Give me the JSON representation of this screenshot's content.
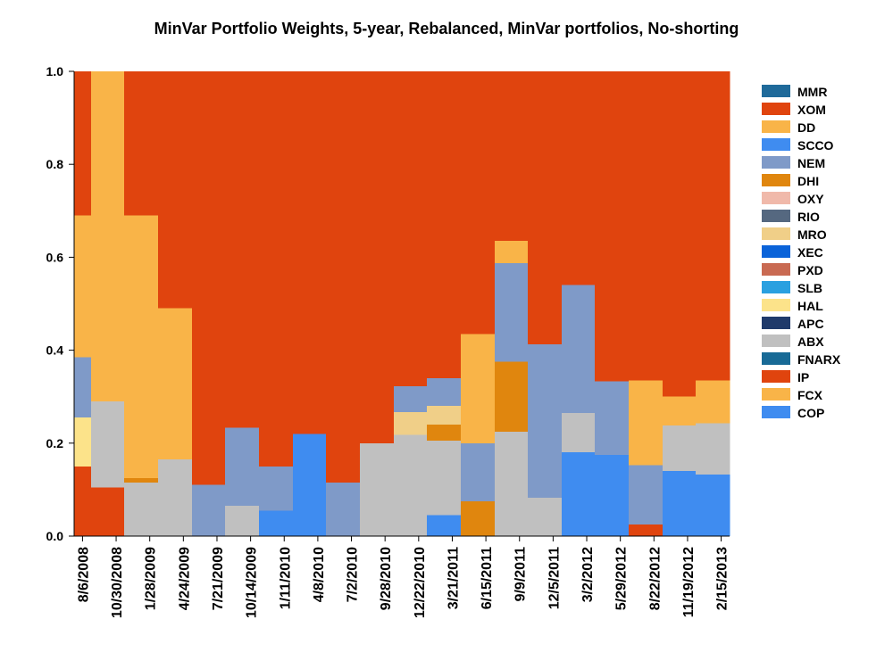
{
  "chart_data": {
    "type": "area",
    "stacked": true,
    "step": true,
    "title": "MinVar Portfolio Weights, 5-year, Rebalanced, MinVar portfolios, No-shorting",
    "xlabel": "",
    "ylabel": "",
    "ylim": [
      0,
      1
    ],
    "y_ticks": [
      "0.0",
      "0.2",
      "0.4",
      "0.6",
      "0.8",
      "1.0"
    ],
    "x_tick_labels": [
      "8/6/2008",
      "10/30/2008",
      "1/28/2009",
      "4/24/2009",
      "7/21/2009",
      "10/14/2009",
      "1/11/2010",
      "4/8/2010",
      "7/2/2010",
      "9/28/2010",
      "12/22/2010",
      "3/21/2011",
      "6/15/2011",
      "9/9/2011",
      "12/5/2011",
      "3/2/2012",
      "5/29/2012",
      "8/22/2012",
      "11/19/2012",
      "2/15/2013"
    ],
    "legend": {
      "position": "right",
      "order": [
        "MMR",
        "XOM",
        "DD",
        "SCCO",
        "NEM",
        "DHI",
        "OXY",
        "RIO",
        "MRO",
        "XEC",
        "PXD",
        "SLB",
        "HAL",
        "APC",
        "ABX",
        "FNARX",
        "IP",
        "FCX",
        "COP"
      ]
    },
    "colors": {
      "MMR": "#1f6a9a",
      "XOM": "#e0440e",
      "DD": "#f9b448",
      "SCCO": "#3f8cf0",
      "NEM": "#7f9ac8",
      "DHI": "#e0860e",
      "OXY": "#f0b9aa",
      "RIO": "#556880",
      "MRO": "#f0cf88",
      "XEC": "#0a63d9",
      "PXD": "#c96a52",
      "SLB": "#2aa0e0",
      "HAL": "#fce38a",
      "APC": "#1f3a6a",
      "ABX": "#c0c0c0",
      "FNARX": "#186a96",
      "IP": "#e0440e",
      "FCX": "#f9b448",
      "COP": "#3f8cf0"
    },
    "stack_order_bottom_to_top": [
      "COP",
      "FCX",
      "IP",
      "ABX",
      "HAL",
      "DHI",
      "MRO",
      "NEM",
      "DD",
      "XOM"
    ],
    "columns": [
      {
        "date": "8/6/2008",
        "weights": {
          "IP": 0.15,
          "HAL": 0.105,
          "NEM": 0.13,
          "DD": 0.305,
          "XOM": 0.31
        }
      },
      {
        "date": "9/18/2008",
        "weights": {
          "IP": 0.105,
          "ABX": 0.185,
          "DD": 0.71
        }
      },
      {
        "date": "10/30/2008",
        "weights": {
          "IP": 0.105,
          "ABX": 0.185,
          "DD": 0.71
        }
      },
      {
        "date": "12/14/2008",
        "weights": {
          "ABX": 0.115,
          "DHI": 0.01,
          "DD": 0.565,
          "XOM": 0.31
        }
      },
      {
        "date": "1/28/2009",
        "weights": {
          "ABX": 0.115,
          "DHI": 0.01,
          "DD": 0.565,
          "XOM": 0.31
        }
      },
      {
        "date": "3/12/2009",
        "weights": {
          "ABX": 0.165,
          "DD": 0.325,
          "XOM": 0.51
        }
      },
      {
        "date": "4/24/2009",
        "weights": {
          "ABX": 0.165,
          "DD": 0.325,
          "XOM": 0.51
        }
      },
      {
        "date": "6/7/2009",
        "weights": {
          "NEM": 0.11,
          "XOM": 0.89
        }
      },
      {
        "date": "7/21/2009",
        "weights": {
          "NEM": 0.11,
          "XOM": 0.89
        }
      },
      {
        "date": "9/2/2009",
        "weights": {
          "ABX": 0.065,
          "NEM": 0.168,
          "XOM": 0.767
        }
      },
      {
        "date": "10/14/2009",
        "weights": {
          "ABX": 0.065,
          "NEM": 0.168,
          "XOM": 0.767
        }
      },
      {
        "date": "11/27/2009",
        "weights": {
          "COP": 0.055,
          "NEM": 0.095,
          "XOM": 0.85
        }
      },
      {
        "date": "1/11/2010",
        "weights": {
          "COP": 0.055,
          "NEM": 0.095,
          "XOM": 0.85
        }
      },
      {
        "date": "2/24/2010",
        "weights": {
          "COP": 0.22,
          "XOM": 0.78
        }
      },
      {
        "date": "4/8/2010",
        "weights": {
          "COP": 0.22,
          "XOM": 0.78
        }
      },
      {
        "date": "5/20/2010",
        "weights": {
          "NEM": 0.115,
          "XOM": 0.885
        }
      },
      {
        "date": "7/2/2010",
        "weights": {
          "NEM": 0.115,
          "XOM": 0.885
        }
      },
      {
        "date": "8/16/2010",
        "weights": {
          "ABX": 0.2,
          "XOM": 0.8
        }
      },
      {
        "date": "9/28/2010",
        "weights": {
          "ABX": 0.2,
          "XOM": 0.8
        }
      },
      {
        "date": "11/9/2010",
        "weights": {
          "ABX": 0.218,
          "MRO": 0.049,
          "NEM": 0.055,
          "XOM": 0.678
        }
      },
      {
        "date": "12/22/2010",
        "weights": {
          "ABX": 0.218,
          "MRO": 0.049,
          "NEM": 0.055,
          "XOM": 0.678
        }
      },
      {
        "date": "2/7/2011",
        "weights": {
          "COP": 0.045,
          "ABX": 0.16,
          "MRO": 0.04,
          "DHI": 0.035,
          "NEM": 0.06,
          "XOM": 0.66
        }
      },
      {
        "date": "3/21/2011",
        "weights": {
          "COP": 0.045,
          "ABX": 0.16,
          "MRO": 0.04,
          "DHI": 0.035,
          "NEM": 0.06,
          "XOM": 0.66
        }
      },
      {
        "date": "5/3/2011",
        "weights": {
          "DHI": 0.075,
          "NEM": 0.125,
          "DD": 0.235,
          "XOM": 0.565
        }
      },
      {
        "date": "6/15/2011",
        "weights": {
          "DHI": 0.075,
          "NEM": 0.125,
          "DD": 0.235,
          "XOM": 0.565
        }
      },
      {
        "date": "7/28/2011",
        "weights": {
          "ABX": 0.225,
          "DHI": 0.15,
          "NEM": 0.212,
          "DD": 0.048,
          "XOM": 0.365
        }
      },
      {
        "date": "9/9/2011",
        "weights": {
          "ABX": 0.225,
          "DHI": 0.15,
          "NEM": 0.212,
          "DD": 0.048,
          "XOM": 0.365
        }
      },
      {
        "date": "10/24/2011",
        "weights": {
          "ABX": 0.083,
          "NEM": 0.33,
          "XOM": 0.587
        }
      },
      {
        "date": "12/5/2011",
        "weights": {
          "ABX": 0.083,
          "NEM": 0.33,
          "XOM": 0.587
        }
      },
      {
        "date": "1/19/2012",
        "weights": {
          "COP": 0.18,
          "ABX": 0.085,
          "NEM": 0.275,
          "XOM": 0.46
        }
      },
      {
        "date": "3/2/2012",
        "weights": {
          "COP": 0.18,
          "ABX": 0.085,
          "NEM": 0.275,
          "XOM": 0.46
        }
      },
      {
        "date": "4/16/2012",
        "weights": {
          "COP": 0.175,
          "NEM": 0.158,
          "XOM": 0.667
        }
      },
      {
        "date": "5/29/2012",
        "weights": {
          "COP": 0.175,
          "NEM": 0.158,
          "XOM": 0.667
        }
      },
      {
        "date": "7/11/2012",
        "weights": {
          "IP": 0.025,
          "NEM": 0.128,
          "DD": 0.182,
          "XOM": 0.665
        }
      },
      {
        "date": "8/22/2012",
        "weights": {
          "IP": 0.025,
          "NEM": 0.128,
          "DD": 0.182,
          "XOM": 0.665
        }
      },
      {
        "date": "10/5/2012",
        "weights": {
          "COP": 0.14,
          "ABX": 0.098,
          "DD": 0.062,
          "XOM": 0.7
        }
      },
      {
        "date": "11/19/2012",
        "weights": {
          "COP": 0.14,
          "ABX": 0.098,
          "DD": 0.062,
          "XOM": 0.7
        }
      },
      {
        "date": "1/2/2013",
        "weights": {
          "COP": 0.132,
          "ABX": 0.111,
          "DD": 0.092,
          "XOM": 0.665
        }
      },
      {
        "date": "2/15/2013",
        "weights": {
          "COP": 0.132,
          "ABX": 0.111,
          "DD": 0.092,
          "XOM": 0.665
        }
      }
    ]
  }
}
